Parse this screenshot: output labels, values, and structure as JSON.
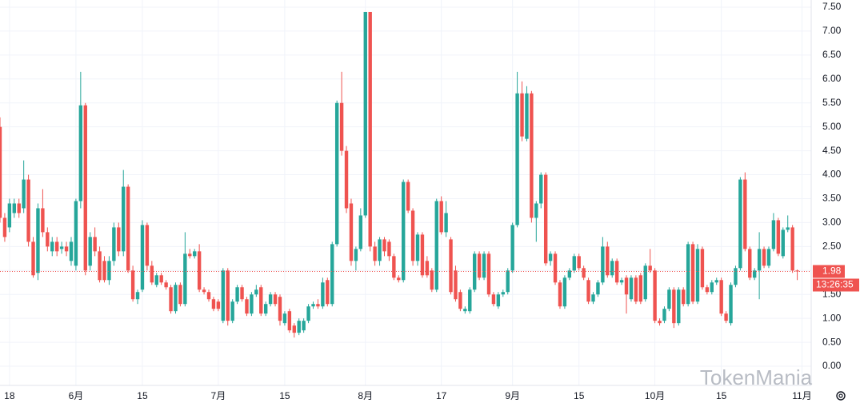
{
  "chart_data": {
    "type": "candlestick",
    "up_color": "#26a69a",
    "down_color": "#ef5350",
    "grid": true,
    "xlim": [
      0,
      170.6
    ],
    "ylim": [
      -0.4,
      7.65
    ],
    "xticks": [
      {
        "value": 2,
        "label": "18"
      },
      {
        "value": 16,
        "label": "6月"
      },
      {
        "value": 30,
        "label": "15"
      },
      {
        "value": 46,
        "label": "7月"
      },
      {
        "value": 60,
        "label": "15"
      },
      {
        "value": 77,
        "label": "8月"
      },
      {
        "value": 93,
        "label": "17"
      },
      {
        "value": 108,
        "label": "9月"
      },
      {
        "value": 122,
        "label": "15"
      },
      {
        "value": 138,
        "label": "10月"
      },
      {
        "value": 152,
        "label": "15"
      },
      {
        "value": 169,
        "label": "11月"
      }
    ],
    "yticks": [
      {
        "value": 0,
        "label": "0.00"
      },
      {
        "value": 0.5,
        "label": "0.50"
      },
      {
        "value": 1,
        "label": "1.00"
      },
      {
        "value": 1.5,
        "label": "1.50"
      },
      {
        "value": 2,
        "label": "2.00"
      },
      {
        "value": 2.5,
        "label": "2.50"
      },
      {
        "value": 3,
        "label": "3.00"
      },
      {
        "value": 3.5,
        "label": "3.50"
      },
      {
        "value": 4,
        "label": "4.00"
      },
      {
        "value": 4.5,
        "label": "4.50"
      },
      {
        "value": 5,
        "label": "5.00"
      },
      {
        "value": 5.5,
        "label": "5.50"
      },
      {
        "value": 6,
        "label": "6.00"
      },
      {
        "value": 6.5,
        "label": "6.50"
      },
      {
        "value": 7,
        "label": "7.00"
      },
      {
        "value": 7.5,
        "label": "7.50"
      }
    ],
    "last_price": 1.98,
    "countdown": "13:26:35",
    "watermark": "TokenMania",
    "candles": [
      [
        5.0,
        5.2,
        3.0,
        3.1
      ],
      [
        3.1,
        3.2,
        2.6,
        2.7
      ],
      [
        2.9,
        3.5,
        2.8,
        3.4
      ],
      [
        3.2,
        3.5,
        3.1,
        3.4
      ],
      [
        3.4,
        3.5,
        3.1,
        3.2
      ],
      [
        3.3,
        4.3,
        3.2,
        3.9
      ],
      [
        3.9,
        4.0,
        2.5,
        2.6
      ],
      [
        2.6,
        2.7,
        1.85,
        1.9
      ],
      [
        1.95,
        3.4,
        1.8,
        3.3
      ],
      [
        3.3,
        3.7,
        2.7,
        2.8
      ],
      [
        2.8,
        2.9,
        2.4,
        2.5
      ],
      [
        2.4,
        2.7,
        2.3,
        2.6
      ],
      [
        2.6,
        2.7,
        2.3,
        2.4
      ],
      [
        2.45,
        2.6,
        2.35,
        2.5
      ],
      [
        2.5,
        2.6,
        2.3,
        2.4
      ],
      [
        2.2,
        2.7,
        2.1,
        2.6
      ],
      [
        2.1,
        3.5,
        2.0,
        3.45
      ],
      [
        3.45,
        6.15,
        3.3,
        5.45
      ],
      [
        5.45,
        5.5,
        1.9,
        2.0
      ],
      [
        2.1,
        2.8,
        2.0,
        2.7
      ],
      [
        2.7,
        2.9,
        2.3,
        2.4
      ],
      [
        2.4,
        2.5,
        1.75,
        1.8
      ],
      [
        2.2,
        2.3,
        1.75,
        1.8
      ],
      [
        1.8,
        2.3,
        1.7,
        2.2
      ],
      [
        2.2,
        3.0,
        2.1,
        2.9
      ],
      [
        2.9,
        3.0,
        2.3,
        2.4
      ],
      [
        2.4,
        4.1,
        2.3,
        3.75
      ],
      [
        3.75,
        3.8,
        1.95,
        2.0
      ],
      [
        2.0,
        2.1,
        1.35,
        1.4
      ],
      [
        1.4,
        1.6,
        1.3,
        1.55
      ],
      [
        1.6,
        3.05,
        1.55,
        2.95
      ],
      [
        2.95,
        3.0,
        2.0,
        2.1
      ],
      [
        2.1,
        2.2,
        1.7,
        1.75
      ],
      [
        1.7,
        1.95,
        1.65,
        1.9
      ],
      [
        1.9,
        1.95,
        1.7,
        1.75
      ],
      [
        1.75,
        1.8,
        1.6,
        1.65
      ],
      [
        1.65,
        1.7,
        1.1,
        1.15
      ],
      [
        1.15,
        1.75,
        1.1,
        1.7
      ],
      [
        1.7,
        1.75,
        1.25,
        1.3
      ],
      [
        1.3,
        2.8,
        1.25,
        2.35
      ],
      [
        2.35,
        2.45,
        2.25,
        2.3
      ],
      [
        2.3,
        2.45,
        2.25,
        2.4
      ],
      [
        2.4,
        2.55,
        1.55,
        1.6
      ],
      [
        1.6,
        1.65,
        1.5,
        1.55
      ],
      [
        1.55,
        1.6,
        1.35,
        1.4
      ],
      [
        1.4,
        1.45,
        1.15,
        1.2
      ],
      [
        1.35,
        1.4,
        1.15,
        1.2
      ],
      [
        0.95,
        2.05,
        0.9,
        2.0
      ],
      [
        2.0,
        2.05,
        0.85,
        0.95
      ],
      [
        0.95,
        1.4,
        0.9,
        1.35
      ],
      [
        1.35,
        1.7,
        1.3,
        1.65
      ],
      [
        1.65,
        1.7,
        1.35,
        1.4
      ],
      [
        1.4,
        1.45,
        1.05,
        1.1
      ],
      [
        1.1,
        1.55,
        1.05,
        1.5
      ],
      [
        1.5,
        1.7,
        1.45,
        1.6
      ],
      [
        1.65,
        1.7,
        1.05,
        1.1
      ],
      [
        1.1,
        1.35,
        1.05,
        1.3
      ],
      [
        1.3,
        1.55,
        1.25,
        1.5
      ],
      [
        1.5,
        1.55,
        1.25,
        1.3
      ],
      [
        1.45,
        1.5,
        0.85,
        0.95
      ],
      [
        0.9,
        1.15,
        0.85,
        1.1
      ],
      [
        1.15,
        1.2,
        0.7,
        0.75
      ],
      [
        0.85,
        0.9,
        0.6,
        0.7
      ],
      [
        0.7,
        1.0,
        0.65,
        0.95
      ],
      [
        0.75,
        1.0,
        0.7,
        0.95
      ],
      [
        0.95,
        1.3,
        0.9,
        1.25
      ],
      [
        1.25,
        1.35,
        1.2,
        1.3
      ],
      [
        1.3,
        1.4,
        1.2,
        1.25
      ],
      [
        1.25,
        1.85,
        1.2,
        1.75
      ],
      [
        1.8,
        1.85,
        1.25,
        1.3
      ],
      [
        1.3,
        2.6,
        1.25,
        2.55
      ],
      [
        2.55,
        5.55,
        2.5,
        5.5
      ],
      [
        5.5,
        6.15,
        4.4,
        4.5
      ],
      [
        4.5,
        4.6,
        3.2,
        3.3
      ],
      [
        3.4,
        3.5,
        2.1,
        2.2
      ],
      [
        2.2,
        2.5,
        2.0,
        2.45
      ],
      [
        2.45,
        3.3,
        2.4,
        3.15
      ],
      [
        3.15,
        7.4,
        3.1,
        7.4
      ],
      [
        7.4,
        7.4,
        2.4,
        2.5
      ],
      [
        2.5,
        2.6,
        2.1,
        2.2
      ],
      [
        2.2,
        2.7,
        2.1,
        2.65
      ],
      [
        2.65,
        2.7,
        2.3,
        2.4
      ],
      [
        2.6,
        2.65,
        2.2,
        2.3
      ],
      [
        2.3,
        2.35,
        1.8,
        1.85
      ],
      [
        1.85,
        1.9,
        1.75,
        1.8
      ],
      [
        1.8,
        3.9,
        1.75,
        3.85
      ],
      [
        3.85,
        3.9,
        3.2,
        3.25
      ],
      [
        3.25,
        3.3,
        2.1,
        2.2
      ],
      [
        2.2,
        2.8,
        2.1,
        2.75
      ],
      [
        2.75,
        2.8,
        1.85,
        1.9
      ],
      [
        2.2,
        2.3,
        1.85,
        1.9
      ],
      [
        2.0,
        2.05,
        1.55,
        1.6
      ],
      [
        1.6,
        3.5,
        1.55,
        3.45
      ],
      [
        3.45,
        3.55,
        2.75,
        2.8
      ],
      [
        2.8,
        3.45,
        2.7,
        3.2
      ],
      [
        2.65,
        2.7,
        1.5,
        1.55
      ],
      [
        2.0,
        2.1,
        1.35,
        1.4
      ],
      [
        1.55,
        1.6,
        1.15,
        1.2
      ],
      [
        1.15,
        1.25,
        1.1,
        1.2
      ],
      [
        1.15,
        1.65,
        1.1,
        1.6
      ],
      [
        1.6,
        2.4,
        1.55,
        2.35
      ],
      [
        2.35,
        2.4,
        1.8,
        1.85
      ],
      [
        1.85,
        2.4,
        1.8,
        2.35
      ],
      [
        2.35,
        2.4,
        1.45,
        1.5
      ],
      [
        1.5,
        1.55,
        1.25,
        1.3
      ],
      [
        1.25,
        1.55,
        1.2,
        1.5
      ],
      [
        1.5,
        1.6,
        1.45,
        1.55
      ],
      [
        1.55,
        2.05,
        1.5,
        2.0
      ],
      [
        2.0,
        3.0,
        1.95,
        2.95
      ],
      [
        2.95,
        6.15,
        2.9,
        5.7
      ],
      [
        5.7,
        5.95,
        4.7,
        4.8
      ],
      [
        4.75,
        5.85,
        4.7,
        5.7
      ],
      [
        5.7,
        5.75,
        3.0,
        3.1
      ],
      [
        3.1,
        3.45,
        2.6,
        3.4
      ],
      [
        3.4,
        4.05,
        3.3,
        4.0
      ],
      [
        4.0,
        4.05,
        2.1,
        2.15
      ],
      [
        2.2,
        2.4,
        2.1,
        2.35
      ],
      [
        2.35,
        2.4,
        1.7,
        1.75
      ],
      [
        1.75,
        1.8,
        1.2,
        1.25
      ],
      [
        1.25,
        1.9,
        1.2,
        1.85
      ],
      [
        1.85,
        2.05,
        1.8,
        2.0
      ],
      [
        2.0,
        2.35,
        1.95,
        2.3
      ],
      [
        2.3,
        2.35,
        2.0,
        2.05
      ],
      [
        2.05,
        2.1,
        1.8,
        1.85
      ],
      [
        1.8,
        1.85,
        1.3,
        1.35
      ],
      [
        1.35,
        1.55,
        1.3,
        1.5
      ],
      [
        1.5,
        1.8,
        1.45,
        1.75
      ],
      [
        1.75,
        2.7,
        1.7,
        2.5
      ],
      [
        2.5,
        2.6,
        1.85,
        1.9
      ],
      [
        1.9,
        2.25,
        1.85,
        2.2
      ],
      [
        2.2,
        2.25,
        1.7,
        1.75
      ],
      [
        1.75,
        1.85,
        1.7,
        1.8
      ],
      [
        1.85,
        1.9,
        1.1,
        1.5
      ],
      [
        1.4,
        1.9,
        1.35,
        1.85
      ],
      [
        1.85,
        1.9,
        1.3,
        1.35
      ],
      [
        1.9,
        1.95,
        1.3,
        1.35
      ],
      [
        1.4,
        2.15,
        1.35,
        2.1
      ],
      [
        2.1,
        2.45,
        1.95,
        2.0
      ],
      [
        2.0,
        2.05,
        0.9,
        0.95
      ],
      [
        0.95,
        1.0,
        0.85,
        0.9
      ],
      [
        0.95,
        1.25,
        0.9,
        1.2
      ],
      [
        1.2,
        1.65,
        1.15,
        1.6
      ],
      [
        1.6,
        1.65,
        0.8,
        0.9
      ],
      [
        0.9,
        1.65,
        0.85,
        1.6
      ],
      [
        1.6,
        1.65,
        1.25,
        1.3
      ],
      [
        1.3,
        2.6,
        1.25,
        2.55
      ],
      [
        2.55,
        2.6,
        1.3,
        1.35
      ],
      [
        1.35,
        2.55,
        1.3,
        2.45
      ],
      [
        2.45,
        2.5,
        1.6,
        1.65
      ],
      [
        1.65,
        1.7,
        1.5,
        1.55
      ],
      [
        1.55,
        1.8,
        1.5,
        1.75
      ],
      [
        1.75,
        1.85,
        1.7,
        1.8
      ],
      [
        1.8,
        1.85,
        1.05,
        1.1
      ],
      [
        1.1,
        1.15,
        0.9,
        0.95
      ],
      [
        0.9,
        1.75,
        0.85,
        1.7
      ],
      [
        1.7,
        2.1,
        1.65,
        2.05
      ],
      [
        2.05,
        3.95,
        2.0,
        3.9
      ],
      [
        3.9,
        4.05,
        2.4,
        2.45
      ],
      [
        2.45,
        2.5,
        1.8,
        1.85
      ],
      [
        1.85,
        2.05,
        1.8,
        2.0
      ],
      [
        2.0,
        2.8,
        1.4,
        2.45
      ],
      [
        2.45,
        2.5,
        2.05,
        2.1
      ],
      [
        2.1,
        2.5,
        2.05,
        2.45
      ],
      [
        2.45,
        3.2,
        2.4,
        3.05
      ],
      [
        3.05,
        3.1,
        2.3,
        2.35
      ],
      [
        2.3,
        2.9,
        2.25,
        2.85
      ],
      [
        2.85,
        3.15,
        2.8,
        2.9
      ],
      [
        2.9,
        2.95,
        1.95,
        2.0
      ],
      [
        2.0,
        2.02,
        1.8,
        1.98
      ]
    ]
  }
}
